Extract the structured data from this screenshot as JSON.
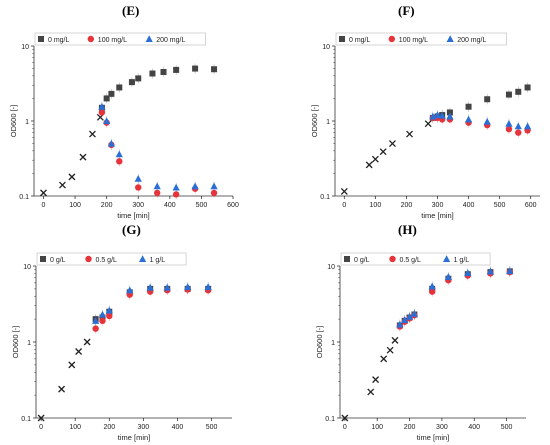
{
  "panels": [
    {
      "id": "E",
      "label": "(E)"
    },
    {
      "id": "F",
      "label": "(F)"
    },
    {
      "id": "G",
      "label": "(G)"
    },
    {
      "id": "H",
      "label": "(H)"
    }
  ],
  "chart_data": [
    {
      "panel": "(E)",
      "type": "scatter",
      "title": "",
      "xlabel": "time [min]",
      "ylabel": "OD600 [-]",
      "xlim": [
        -30,
        600
      ],
      "xticks": [
        0,
        100,
        200,
        300,
        400,
        500,
        600
      ],
      "ylim": [
        0.1,
        10
      ],
      "yscale": "log",
      "yticks": [
        0.1,
        1,
        10
      ],
      "legend_position": "top",
      "series": [
        {
          "name": "",
          "marker": "x",
          "color": "#222222",
          "x": [
            0,
            60,
            90,
            125,
            155,
            180
          ],
          "y": [
            0.11,
            0.14,
            0.18,
            0.33,
            0.67,
            1.12
          ]
        },
        {
          "name": "0 mg/L",
          "marker": "square",
          "color": "#444444",
          "x": [
            185,
            200,
            215,
            240,
            280,
            300,
            345,
            380,
            420,
            480,
            540
          ],
          "y": [
            1.5,
            2.0,
            2.3,
            2.8,
            3.3,
            3.7,
            4.3,
            4.5,
            4.8,
            5.0,
            4.9
          ]
        },
        {
          "name": "100 mg/L",
          "marker": "circle",
          "color": "#e8333a",
          "x": [
            185,
            200,
            215,
            240,
            300,
            360,
            420,
            480,
            540
          ],
          "y": [
            1.3,
            0.95,
            0.48,
            0.29,
            0.13,
            0.11,
            0.105,
            0.125,
            0.11
          ]
        },
        {
          "name": "200 mg/L",
          "marker": "triangle",
          "color": "#2a6fd6",
          "x": [
            185,
            200,
            215,
            240,
            300,
            360,
            420,
            480,
            540
          ],
          "y": [
            1.55,
            1.0,
            0.5,
            0.36,
            0.17,
            0.135,
            0.13,
            0.135,
            0.135
          ]
        }
      ]
    },
    {
      "panel": "(F)",
      "type": "scatter",
      "title": "",
      "xlabel": "time [min]",
      "ylabel": "OD600 [-]",
      "xlim": [
        -30,
        630
      ],
      "xticks": [
        0,
        100,
        200,
        300,
        400,
        500,
        600
      ],
      "ylim": [
        0.1,
        10
      ],
      "yscale": "log",
      "yticks": [
        0.1,
        1,
        10
      ],
      "legend_position": "top",
      "series": [
        {
          "name": "",
          "marker": "x",
          "color": "#222222",
          "x": [
            0,
            80,
            100,
            125,
            155,
            210,
            270
          ],
          "y": [
            0.115,
            0.26,
            0.31,
            0.39,
            0.5,
            0.67,
            0.92
          ]
        },
        {
          "name": "0 mg/L",
          "marker": "square",
          "color": "#444444",
          "x": [
            285,
            300,
            315,
            340,
            400,
            460,
            530,
            560,
            590
          ],
          "y": [
            1.1,
            1.15,
            1.2,
            1.3,
            1.55,
            1.95,
            2.25,
            2.45,
            2.8
          ]
        },
        {
          "name": "100 mg/L",
          "marker": "circle",
          "color": "#e8333a",
          "x": [
            285,
            300,
            315,
            340,
            400,
            460,
            530,
            560,
            590
          ],
          "y": [
            1.1,
            1.1,
            1.05,
            1.05,
            0.95,
            0.88,
            0.78,
            0.7,
            0.75
          ]
        },
        {
          "name": "200 mg/L",
          "marker": "triangle",
          "color": "#2a6fd6",
          "x": [
            285,
            300,
            315,
            340,
            400,
            460,
            530,
            560,
            590
          ],
          "y": [
            1.15,
            1.2,
            1.18,
            1.15,
            1.05,
            0.98,
            0.92,
            0.85,
            0.85
          ]
        }
      ]
    },
    {
      "panel": "(G)",
      "type": "scatter",
      "title": "",
      "xlabel": "time [min]",
      "ylabel": "OD600 [-]",
      "xlim": [
        -15,
        560
      ],
      "xticks": [
        0,
        100,
        200,
        300,
        400,
        500
      ],
      "ylim": [
        0.1,
        10
      ],
      "yscale": "log",
      "yticks": [
        0.1,
        1,
        10
      ],
      "legend_position": "top",
      "series": [
        {
          "name": "",
          "marker": "x",
          "color": "#222222",
          "x": [
            0,
            60,
            90,
            110,
            135
          ],
          "y": [
            0.1,
            0.24,
            0.5,
            0.75,
            1.0
          ]
        },
        {
          "name": "0 g/L",
          "marker": "square",
          "color": "#444444",
          "x": [
            160,
            180,
            200,
            260,
            320,
            370,
            430,
            490
          ],
          "y": [
            2.0,
            2.1,
            2.5,
            4.5,
            5.0,
            5.0,
            5.0,
            5.0
          ]
        },
        {
          "name": "0.5 g/L",
          "marker": "circle",
          "color": "#e8333a",
          "x": [
            160,
            180,
            200,
            260,
            320,
            370,
            430,
            490
          ],
          "y": [
            1.5,
            1.9,
            2.2,
            4.2,
            4.6,
            4.8,
            4.9,
            4.8
          ]
        },
        {
          "name": "1 g/L",
          "marker": "triangle",
          "color": "#2a6fd6",
          "x": [
            160,
            180,
            200,
            260,
            320,
            370,
            430,
            490
          ],
          "y": [
            1.9,
            2.3,
            2.6,
            4.8,
            5.2,
            5.2,
            5.3,
            5.3
          ]
        }
      ]
    },
    {
      "panel": "(H)",
      "type": "scatter",
      "title": "",
      "xlabel": "time [min]",
      "ylabel": "OD600 [-]",
      "xlim": [
        -15,
        560
      ],
      "xticks": [
        0,
        100,
        200,
        300,
        400,
        500
      ],
      "ylim": [
        0.1,
        10
      ],
      "yscale": "log",
      "yticks": [
        0.1,
        1,
        10
      ],
      "legend_position": "top",
      "series": [
        {
          "name": "",
          "marker": "x",
          "color": "#222222",
          "x": [
            0,
            80,
            95,
            120,
            140,
            155
          ],
          "y": [
            0.1,
            0.22,
            0.32,
            0.6,
            0.78,
            1.05
          ]
        },
        {
          "name": "0 g/L",
          "marker": "square",
          "color": "#444444",
          "x": [
            170,
            185,
            200,
            215,
            270,
            320,
            380,
            450,
            510
          ],
          "y": [
            1.65,
            1.9,
            2.1,
            2.3,
            5.0,
            6.8,
            7.8,
            8.3,
            8.5
          ]
        },
        {
          "name": "0.5 g/L",
          "marker": "circle",
          "color": "#e8333a",
          "x": [
            170,
            185,
            200,
            215,
            270,
            320,
            380,
            450,
            510
          ],
          "y": [
            1.6,
            1.85,
            2.05,
            2.25,
            4.6,
            6.5,
            7.5,
            8.0,
            8.3
          ]
        },
        {
          "name": "1 g/L",
          "marker": "triangle",
          "color": "#2a6fd6",
          "x": [
            170,
            185,
            200,
            215,
            270,
            320,
            380,
            450,
            510
          ],
          "y": [
            1.7,
            1.95,
            2.15,
            2.35,
            5.4,
            7.2,
            8.1,
            8.5,
            8.6
          ]
        }
      ]
    }
  ]
}
